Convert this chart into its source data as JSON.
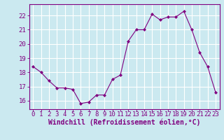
{
  "x": [
    0,
    1,
    2,
    3,
    4,
    5,
    6,
    7,
    8,
    9,
    10,
    11,
    12,
    13,
    14,
    15,
    16,
    17,
    18,
    19,
    20,
    21,
    22,
    23
  ],
  "y": [
    18.4,
    18.0,
    17.4,
    16.9,
    16.9,
    16.8,
    15.8,
    15.9,
    16.4,
    16.4,
    17.5,
    17.8,
    20.2,
    21.0,
    21.0,
    22.1,
    21.7,
    21.9,
    21.9,
    22.3,
    21.0,
    19.4,
    18.4,
    16.6
  ],
  "line_color": "#800080",
  "marker": "D",
  "marker_size": 2,
  "bg_color": "#cbe9f0",
  "grid_color": "#ffffff",
  "xlabel": "Windchill (Refroidissement éolien,°C)",
  "xlabel_fontsize": 7,
  "xtick_labels": [
    "0",
    "1",
    "2",
    "3",
    "4",
    "5",
    "6",
    "7",
    "8",
    "9",
    "10",
    "11",
    "12",
    "13",
    "14",
    "15",
    "16",
    "17",
    "18",
    "19",
    "20",
    "21",
    "22",
    "23"
  ],
  "ytick_labels": [
    "16",
    "17",
    "18",
    "19",
    "20",
    "21",
    "22"
  ],
  "ylim": [
    15.4,
    22.8
  ],
  "xlim": [
    -0.5,
    23.5
  ],
  "tick_color": "#800080",
  "tick_fontsize": 6.5,
  "spine_color": "#800080"
}
